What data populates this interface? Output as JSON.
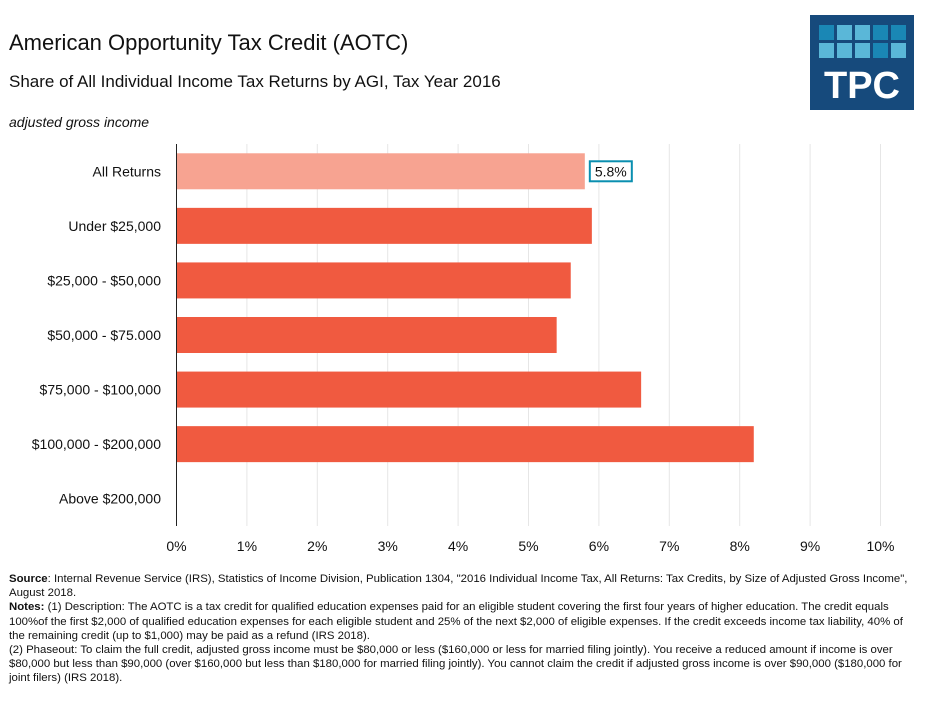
{
  "header": {
    "title": "American Opportunity Tax Credit (AOTC)",
    "subtitle": "Share of All Individual Income Tax Returns by AGI, Tax Year 2016",
    "logo_text": "TPC"
  },
  "chart_data": {
    "type": "bar",
    "orientation": "horizontal",
    "title": "American Opportunity Tax Credit (AOTC)",
    "subtitle": "Share of All Individual Income Tax Returns by AGI, Tax Year 2016",
    "ylabel": "adjusted gross income",
    "xlabel": "",
    "categories": [
      "All Returns",
      "Under $25,000",
      "$25,000 - $50,000",
      "$50,000 - $75.000",
      "$75,000 - $100,000",
      "$100,000 - $200,000",
      "Above $200,000"
    ],
    "values": [
      5.8,
      5.9,
      5.6,
      5.4,
      6.6,
      8.2,
      0
    ],
    "value_unit": "%",
    "xlim": [
      0,
      10
    ],
    "x_ticks": [
      "0%",
      "1%",
      "2%",
      "3%",
      "4%",
      "5%",
      "6%",
      "7%",
      "8%",
      "9%",
      "10%"
    ],
    "grid": "vertical",
    "highlight_label": "5.8%",
    "colors": {
      "bar": "#f05a40",
      "highlight_bar": "#f7a391",
      "label_border": "#0a8fb0",
      "grid": "#e6e6e6"
    }
  },
  "footer": {
    "source_label": "Source",
    "source_text": ": Internal Revenue Service (IRS), Statistics of Income Division, Publication 1304, \"2016 Individual Income Tax, All Returns: Tax Credits, by Size of Adjusted Gross Income\", August 2018.",
    "notes_label": "Notes:",
    "note1": " (1) Description: The AOTC is a tax credit for qualified education expenses paid for an eligible student covering the first four years of higher education. The credit equals 100%of the first $2,000 of qualified education expenses for each eligible student and 25% of the next $2,000 of eligible expenses. If the credit exceeds income tax liability, 40% of the remaining credit (up to $1,000) may be paid as a refund (IRS 2018).",
    "note2": "(2) Phaseout: To claim the full credit, adjusted gross income must be $80,000 or less ($160,000 or less for married filing jointly). You receive a reduced amount if income is over $80,000 but less than $90,000 (over $160,000 but less than $180,000 for married filing jointly). You cannot claim the credit if adjusted gross income is over $90,000 ($180,000 for joint filers) (IRS 2018)."
  }
}
